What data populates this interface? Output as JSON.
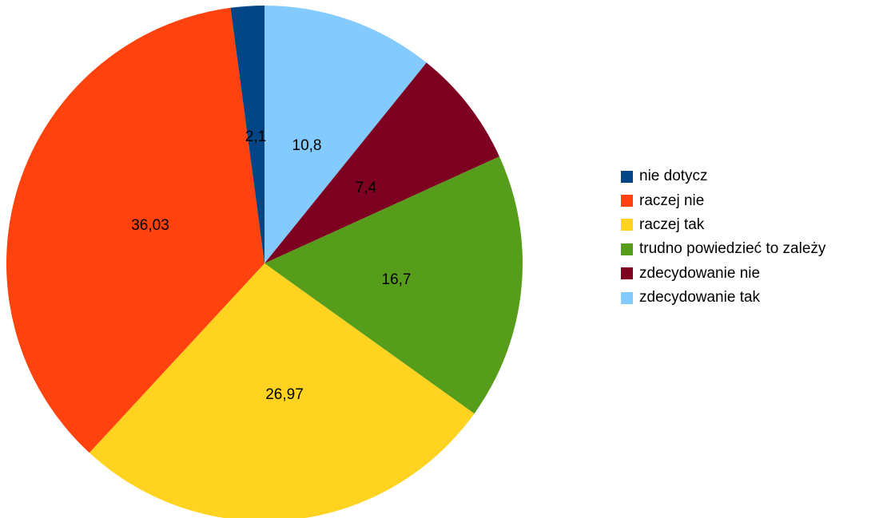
{
  "chart_data": {
    "type": "pie",
    "title": "",
    "legend_position": "right",
    "slices": [
      {
        "label": "zdecydowanie tak",
        "value": 10.8,
        "value_label": "10,8",
        "color": "#83caff"
      },
      {
        "label": "zdecydowanie nie",
        "value": 7.4,
        "value_label": "7,4",
        "color": "#7e0021"
      },
      {
        "label": "trudno powiedzieć to zależy",
        "value": 16.7,
        "value_label": "16,7",
        "color": "#579d1c"
      },
      {
        "label": "raczej tak",
        "value": 26.97,
        "value_label": "26,97",
        "color": "#ffd320"
      },
      {
        "label": "raczej nie",
        "value": 36.03,
        "value_label": "36,03",
        "color": "#ff420e"
      },
      {
        "label": "nie dotycz",
        "value": 2.1,
        "value_label": "2,1",
        "color": "#004586"
      }
    ],
    "legend": [
      {
        "label": "nie dotycz",
        "color": "#004586"
      },
      {
        "label": "raczej nie",
        "color": "#ff420e"
      },
      {
        "label": "raczej tak",
        "color": "#ffd320"
      },
      {
        "label": "trudno powiedzieć to zależy",
        "color": "#579d1c"
      },
      {
        "label": "zdecydowanie nie",
        "color": "#7e0021"
      },
      {
        "label": "zdecydowanie tak",
        "color": "#83caff"
      }
    ]
  }
}
